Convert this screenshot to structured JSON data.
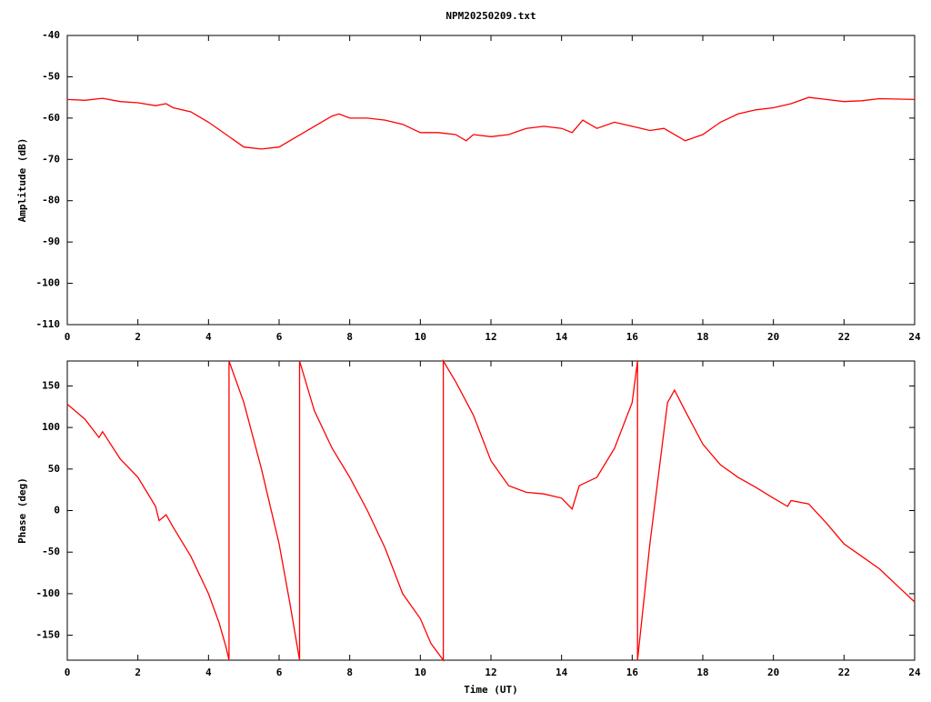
{
  "chart_data": [
    {
      "type": "line",
      "title": "NPM20250209.txt",
      "ylabel": "Amplitude (dB)",
      "color": "#ff0000",
      "x": [
        0,
        0.5,
        1.0,
        1.5,
        2,
        2.5,
        2.8,
        3,
        3.5,
        4,
        4.5,
        5,
        5.5,
        6,
        6.5,
        7,
        7.5,
        7.7,
        8,
        8.5,
        9,
        9.5,
        10,
        10.5,
        11,
        11.3,
        11.5,
        12,
        12.5,
        13,
        13.5,
        14,
        14.3,
        14.6,
        15,
        15.5,
        16,
        16.5,
        16.9,
        17.5,
        18,
        18.5,
        19,
        19.5,
        20,
        20.5,
        21,
        21.5,
        22,
        22.5,
        23,
        24
      ],
      "values": [
        -55.5,
        -55.7,
        -55.2,
        -56,
        -56.3,
        -57,
        -56.5,
        -57.5,
        -58.5,
        -61,
        -64,
        -67,
        -67.5,
        -67,
        -64.5,
        -62,
        -59.5,
        -59,
        -60,
        -60,
        -60.5,
        -61.5,
        -63.5,
        -63.5,
        -64,
        -65.5,
        -64,
        -64.5,
        -64,
        -62.5,
        -62,
        -62.5,
        -63.5,
        -60.5,
        -62.5,
        -61,
        -62,
        -63,
        -62.5,
        -65.5,
        -64,
        -61,
        -59,
        -58,
        -57.5,
        -56.5,
        -55,
        -55.5,
        -56,
        -55.8,
        -55.3,
        -55.5
      ],
      "xlim": [
        0,
        24
      ],
      "ylim": [
        -110,
        -40
      ],
      "xticks": [
        0,
        2,
        4,
        6,
        8,
        10,
        12,
        14,
        16,
        18,
        20,
        22,
        24
      ],
      "yticks": [
        -110,
        -100,
        -90,
        -80,
        -70,
        -60,
        -50,
        -40
      ]
    },
    {
      "type": "line",
      "xlabel": "Time (UT)",
      "ylabel": "Phase (deg)",
      "color": "#ff0000",
      "x": [
        0,
        0.5,
        0.9,
        1.0,
        1.5,
        2,
        2.5,
        2.6,
        2.8,
        3,
        3.5,
        4,
        4.3,
        4.5,
        4.58,
        4.58,
        5,
        5.5,
        6,
        6.3,
        6.58,
        6.58,
        7,
        7.5,
        8,
        8.5,
        9,
        9.5,
        10,
        10.3,
        10.65,
        10.65,
        11,
        11.5,
        12,
        12.5,
        13,
        13.5,
        14,
        14.3,
        14.5,
        15,
        15.5,
        16,
        16.15,
        16.15,
        16.5,
        17,
        17.2,
        17.5,
        18,
        18.5,
        19,
        19.5,
        20,
        20.4,
        20.5,
        21,
        21.5,
        22,
        22.5,
        23,
        23.5,
        24
      ],
      "values": [
        128,
        110,
        88,
        95,
        62,
        40,
        5,
        -12,
        -5,
        -20,
        -55,
        -100,
        -135,
        -165,
        -180,
        180,
        130,
        50,
        -40,
        -110,
        -180,
        180,
        120,
        75,
        40,
        0,
        -45,
        -100,
        -130,
        -160,
        -180,
        180,
        155,
        115,
        60,
        30,
        22,
        20,
        15,
        2,
        30,
        40,
        75,
        130,
        180,
        -180,
        -40,
        130,
        145,
        120,
        80,
        55,
        40,
        28,
        15,
        5,
        12,
        8,
        -15,
        -40,
        -55,
        -70,
        -90,
        -110
      ],
      "xlim": [
        0,
        24
      ],
      "ylim": [
        -180,
        180
      ],
      "xticks": [
        0,
        2,
        4,
        6,
        8,
        10,
        12,
        14,
        16,
        18,
        20,
        22,
        24
      ],
      "yticks": [
        -150,
        -100,
        -50,
        0,
        50,
        100,
        150
      ]
    }
  ]
}
